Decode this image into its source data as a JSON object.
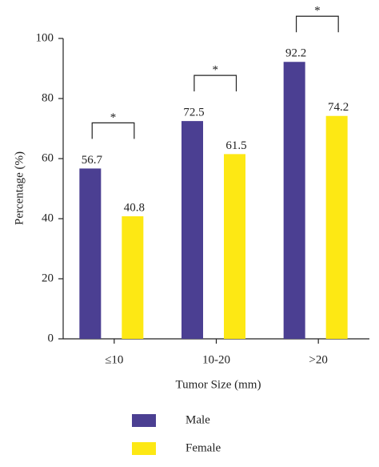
{
  "chart_data": {
    "type": "bar",
    "categories": [
      "≤10",
      "10-20",
      ">20"
    ],
    "series": [
      {
        "name": "Male",
        "color": "#4b3f92",
        "values": [
          56.7,
          72.5,
          92.2
        ]
      },
      {
        "name": "Female",
        "color": "#fde814",
        "values": [
          40.8,
          61.5,
          74.2
        ]
      }
    ],
    "significance": [
      "*",
      "*",
      "*"
    ],
    "x_label": "Tumor Size (mm)",
    "y_label": "Percentage (%)",
    "ylim": [
      0,
      100
    ],
    "yticks": [
      0,
      20,
      40,
      60,
      80,
      100
    ],
    "grid": false
  }
}
